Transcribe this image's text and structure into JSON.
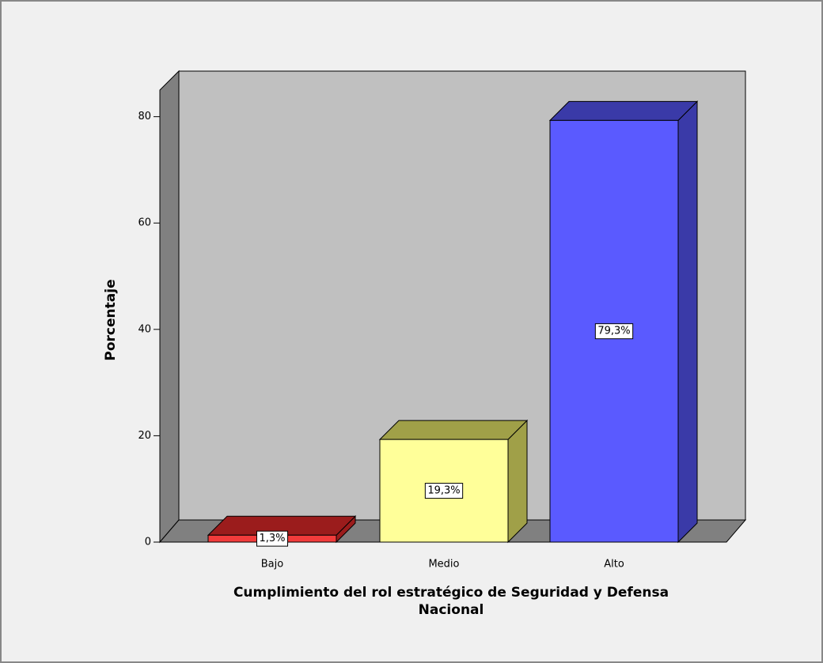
{
  "chart_data": {
    "type": "bar3d",
    "ylabel": "Porcentaje",
    "xlabel": [
      "Cumplimiento del rol estratégico de Seguridad y Defensa",
      "Nacional"
    ],
    "categories": [
      "Bajo",
      "Medio",
      "Alto"
    ],
    "values": [
      1.3,
      19.3,
      79.3
    ],
    "value_labels": [
      "1,3%",
      "19,3%",
      "79,3%"
    ],
    "colors": [
      "#f23b3b",
      "#ffff99",
      "#5a5aff"
    ],
    "shade_colors": [
      "#9b1c1c",
      "#a0a048",
      "#3a3aa8"
    ],
    "ylim": [
      0,
      85
    ],
    "yticks": [
      0,
      20,
      40,
      60,
      80
    ]
  }
}
